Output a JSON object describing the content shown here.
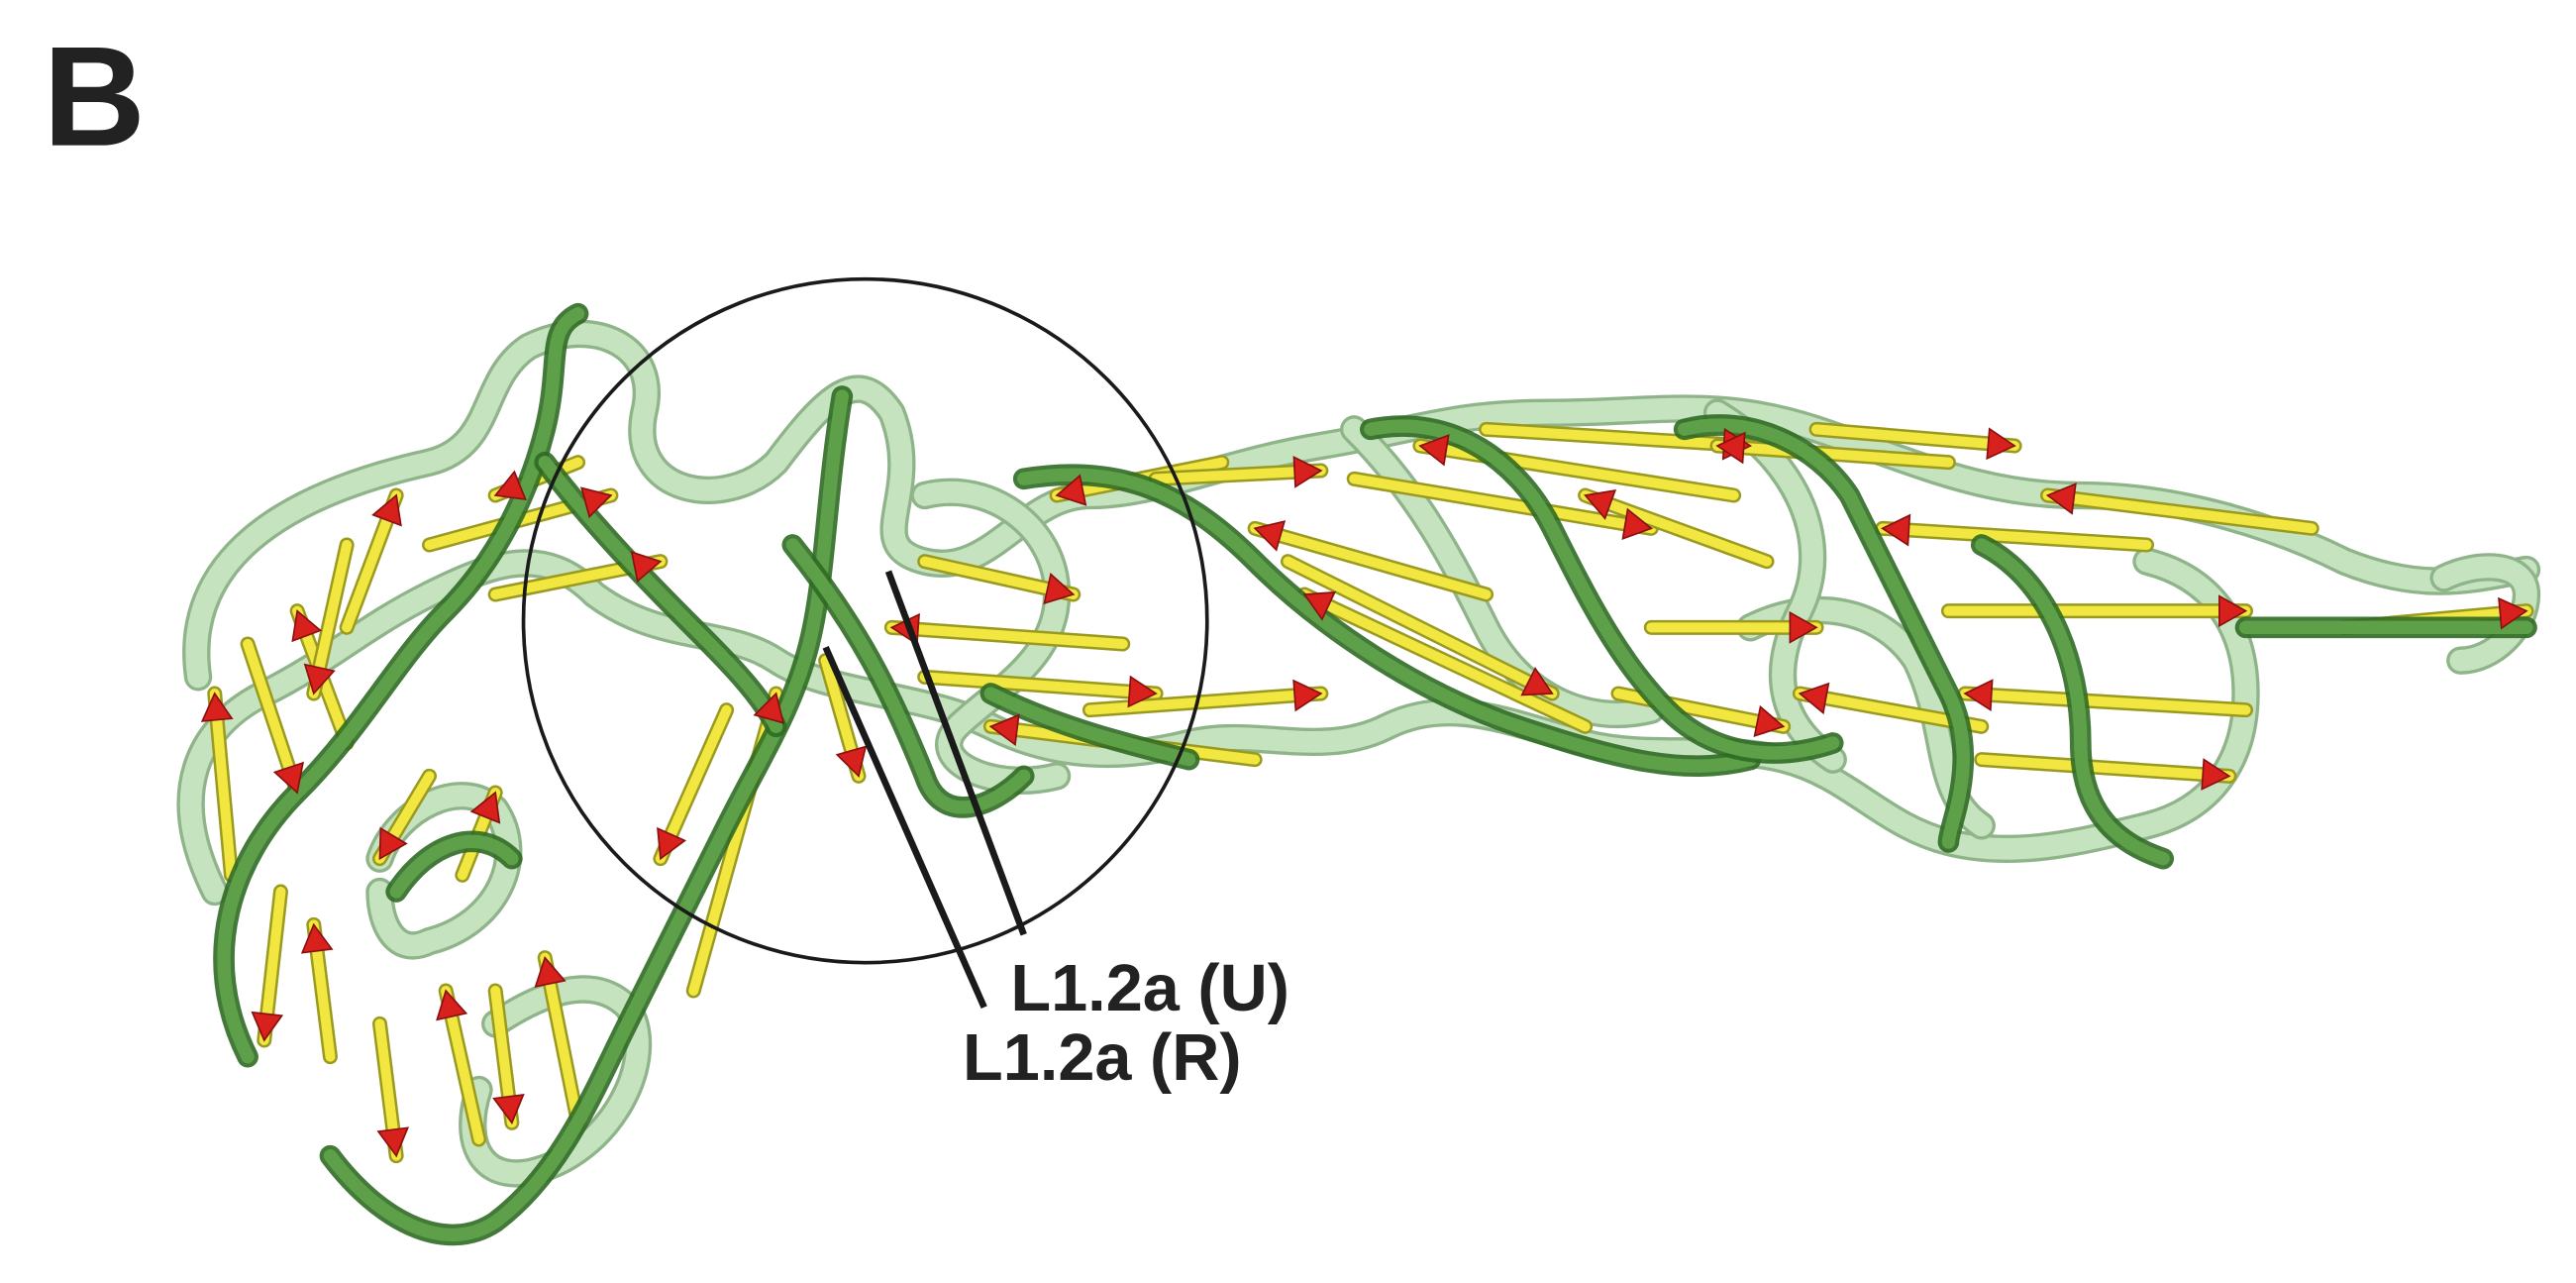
{
  "panel_label": "B",
  "labels": [
    "L1.2a (U)",
    "L1.2a (R)"
  ]
}
